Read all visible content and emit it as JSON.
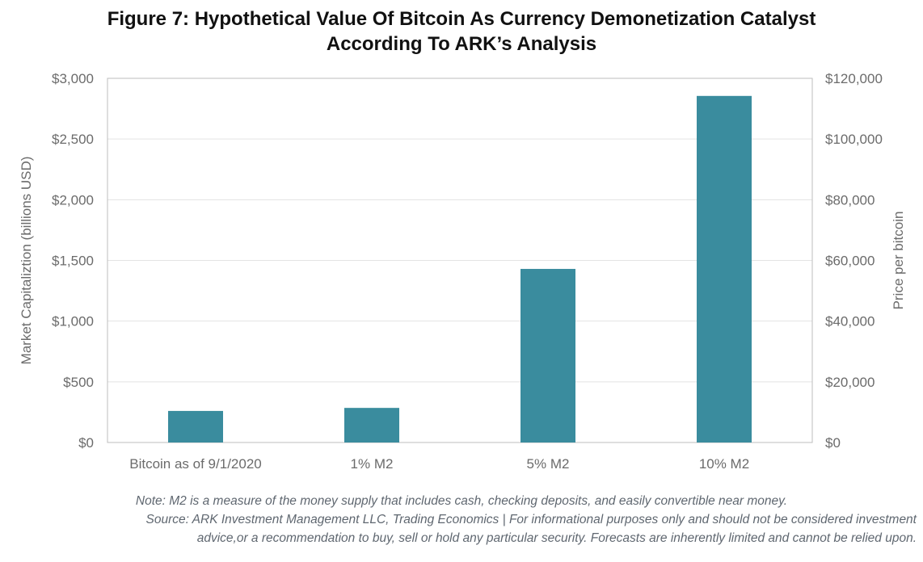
{
  "chart_data": {
    "type": "bar",
    "title_lines": [
      "Figure 7: Hypothetical Value Of Bitcoin As Currency Demonetization Catalyst",
      "According To ARK’s Analysis"
    ],
    "categories": [
      "Bitcoin as of 9/1/2020",
      "1% M2",
      "5% M2",
      "10% M2"
    ],
    "values": [
      260,
      285,
      1430,
      2855
    ],
    "ylabel": "Market Capitaliztion (billions USD)",
    "y2label": "Price per bitcoin",
    "ylim": [
      0,
      3000
    ],
    "y2lim": [
      0,
      120000
    ],
    "yticks": [
      "$0",
      "$500",
      "$1,000",
      "$1,500",
      "$2,000",
      "$2,500",
      "$3,000"
    ],
    "y2ticks": [
      "$0",
      "$20,000",
      "$40,000",
      "$60,000",
      "$80,000",
      "$100,000",
      "$120,000"
    ],
    "grid": true,
    "bar_color": "#3a8c9e"
  },
  "notes": {
    "note": "Note: M2 is a measure of the money supply that includes cash, checking deposits, and easily convertible near money.",
    "source_line1": "Source: ARK Investment Management LLC, Trading Economics  | For informational purposes only and should not be considered investment",
    "source_line2": "advice,or a recommendation to buy, sell or hold any particular security. Forecasts are inherently limited and cannot be relied upon."
  }
}
